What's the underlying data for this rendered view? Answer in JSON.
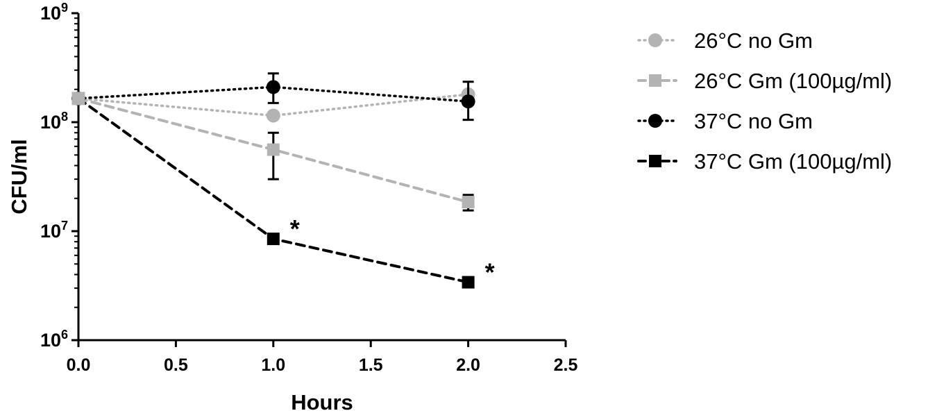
{
  "chart_data": {
    "type": "line",
    "title": "",
    "xlabel": "Hours",
    "ylabel": "CFU/ml",
    "y_scale": "log10",
    "xlim": [
      0.0,
      2.5
    ],
    "ylim": [
      1000000,
      1000000000
    ],
    "x_ticks": [
      "0.0",
      "0.5",
      "1.0",
      "1.5",
      "2.0",
      "2.5"
    ],
    "y_ticks": [
      {
        "base": "10",
        "exp": "6"
      },
      {
        "base": "10",
        "exp": "7"
      },
      {
        "base": "10",
        "exp": "8"
      },
      {
        "base": "10",
        "exp": "9"
      }
    ],
    "grid": false,
    "legend_position": "right",
    "series": [
      {
        "name": "26°C no Gm",
        "color": "#b3b3b3",
        "marker": "circle",
        "line": "dotted",
        "x": [
          0,
          1,
          2
        ],
        "y": [
          165000000,
          115000000,
          180000000
        ],
        "err_low": [
          null,
          null,
          null
        ],
        "err_high": [
          null,
          null,
          null
        ]
      },
      {
        "name": "26°C Gm (100µg/ml)",
        "color": "#b3b3b3",
        "marker": "square",
        "line": "dashed",
        "x": [
          0,
          1,
          2
        ],
        "y": [
          165000000,
          56000000,
          18500000
        ],
        "err_low": [
          null,
          30000000,
          15500000
        ],
        "err_high": [
          null,
          80000000,
          21500000
        ]
      },
      {
        "name": "37°C no Gm",
        "color": "#000000",
        "marker": "circle",
        "line": "dotted",
        "x": [
          0,
          1,
          2
        ],
        "y": [
          165000000,
          210000000,
          155000000
        ],
        "err_low": [
          null,
          150000000,
          105000000
        ],
        "err_high": [
          null,
          280000000,
          235000000
        ]
      },
      {
        "name": "37°C Gm (100µg/ml)",
        "color": "#000000",
        "marker": "square",
        "line": "dashed",
        "x": [
          0,
          1,
          2
        ],
        "y": [
          165000000,
          8500000,
          3400000
        ],
        "err_low": [
          null,
          null,
          null
        ],
        "err_high": [
          null,
          null,
          null
        ]
      }
    ],
    "annotations": [
      {
        "text": "*",
        "x": 1,
        "series": "37°C Gm (100µg/ml)"
      },
      {
        "text": "*",
        "x": 2,
        "series": "37°C Gm (100µg/ml)"
      }
    ]
  }
}
